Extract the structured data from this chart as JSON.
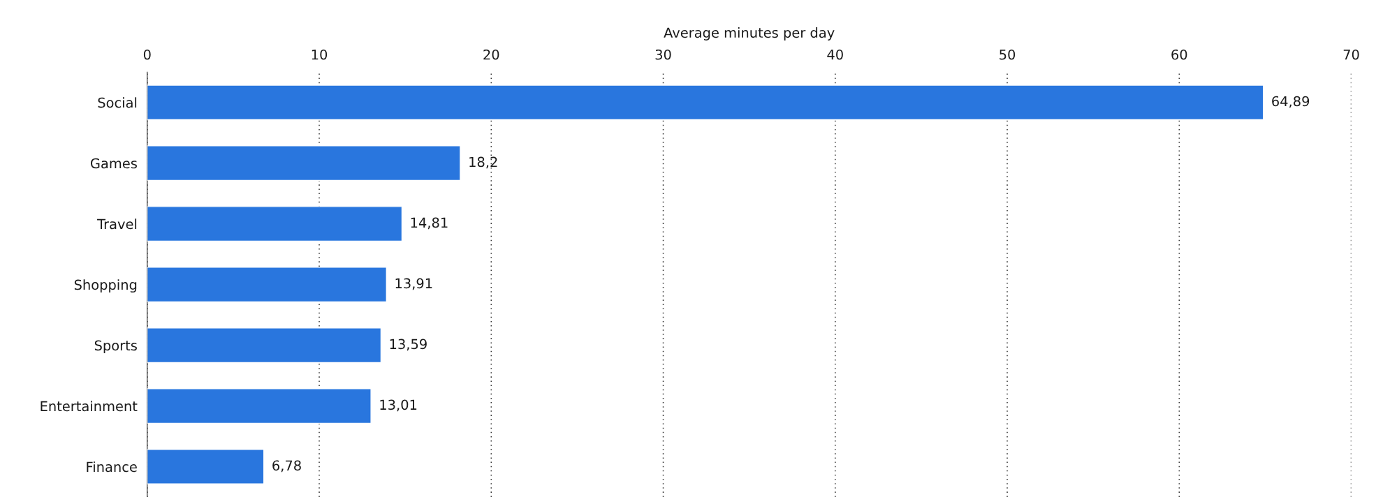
{
  "chart_data": {
    "type": "bar",
    "orientation": "horizontal",
    "xlabel": "Average minutes per day",
    "categories": [
      "Social",
      "Games",
      "Travel",
      "Shopping",
      "Sports",
      "Entertainment",
      "Finance"
    ],
    "values": [
      64.89,
      18.2,
      14.81,
      13.91,
      13.59,
      13.01,
      6.78
    ],
    "value_labels": [
      "64,89",
      "18,2",
      "14,81",
      "13,91",
      "13,59",
      "13,01",
      "6,78"
    ],
    "color": "#2976de",
    "xlim": [
      0,
      70
    ],
    "xticks": [
      0,
      10,
      20,
      30,
      40,
      50,
      60,
      70
    ],
    "grid": "x"
  }
}
